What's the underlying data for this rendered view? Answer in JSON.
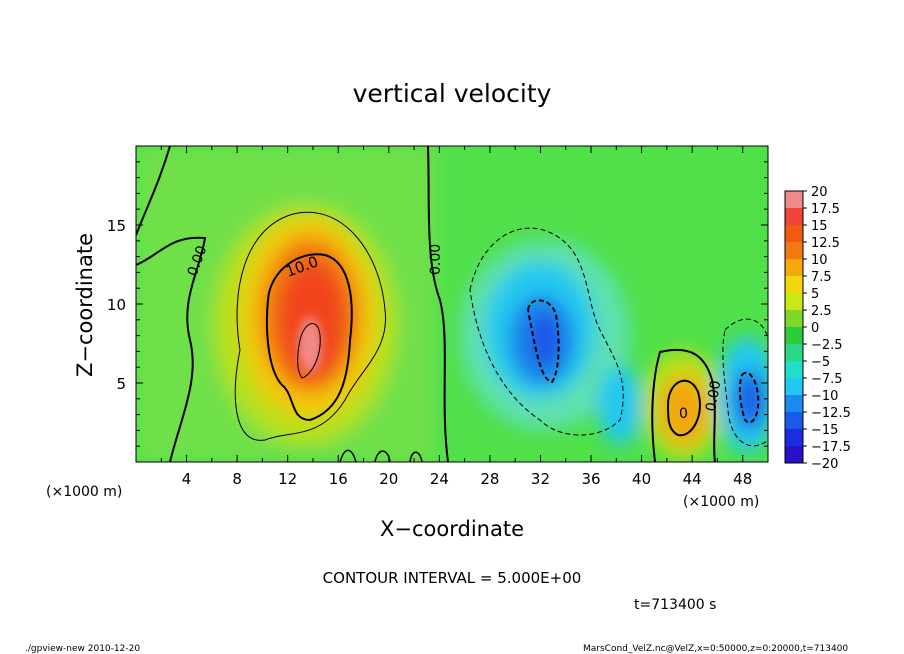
{
  "chart_data": {
    "type": "heatmap",
    "title": "vertical velocity",
    "xlabel": "X−coordinate",
    "ylabel": "Z−coordinate",
    "x_unit_label": "(×1000 m)",
    "y_unit_label": "(×1000 m)",
    "xlim": [
      0,
      50
    ],
    "ylim": [
      0,
      20
    ],
    "x_ticks": [
      4,
      8,
      12,
      16,
      20,
      24,
      28,
      32,
      36,
      40,
      44,
      48
    ],
    "y_ticks": [
      5,
      10,
      15
    ],
    "x_tick_labels": [
      "4",
      "8",
      "12",
      "16",
      "20",
      "24",
      "28",
      "32",
      "36",
      "40",
      "44",
      "48"
    ],
    "y_tick_labels": [
      "5",
      "10",
      "15"
    ],
    "colorbar": {
      "range": [
        -20,
        20
      ],
      "levels": [
        "20",
        "17.5",
        "15",
        "12.5",
        "10",
        "7.5",
        "5",
        "2.5",
        "0",
        "−2.5",
        "−5",
        "−7.5",
        "−10",
        "−12.5",
        "−15",
        "−17.5",
        "−20"
      ],
      "colors": [
        "#f08a8a",
        "#f0453a",
        "#f25a10",
        "#f07a10",
        "#f5a80a",
        "#f2d80a",
        "#c8e81a",
        "#7ed82a",
        "#2ecb3a",
        "#2ad88a",
        "#1ee0c8",
        "#22c8f0",
        "#1a8cf0",
        "#1a5ae8",
        "#1a2ee0",
        "#2a10c8",
        "#7012b8"
      ]
    },
    "features": [
      {
        "kind": "updraft",
        "x": 13.5,
        "z": 8,
        "peak": 17.5
      },
      {
        "kind": "updraft",
        "x": 43,
        "z": 3,
        "peak": 10
      },
      {
        "kind": "downdraft",
        "x": 32,
        "z": 8,
        "peak": -12.5
      },
      {
        "kind": "downdraft",
        "x": 48,
        "z": 4,
        "peak": -12.5
      },
      {
        "kind": "downdraft",
        "x": 38.5,
        "z": 4,
        "peak": -10
      }
    ],
    "contour_labels": [
      {
        "text": "0.00",
        "x": 4.5,
        "z": 12.5
      },
      {
        "text": "10.0",
        "x": 14,
        "z": 12.5
      },
      {
        "text": "0.00",
        "x": 23.5,
        "z": 13
      },
      {
        "text": "0.00",
        "x": 45.5,
        "z": 4
      },
      {
        "text": "0",
        "x": 42.8,
        "z": 3
      }
    ],
    "contour_interval_text": "CONTOUR INTERVAL = 5.000E+00",
    "time_text": "t=713400 s"
  },
  "footer": {
    "left": "./gpview-new  2010-12-20",
    "right": "MarsCond_VelZ.nc@VelZ,x=0:50000,z=0:20000,t=713400"
  }
}
